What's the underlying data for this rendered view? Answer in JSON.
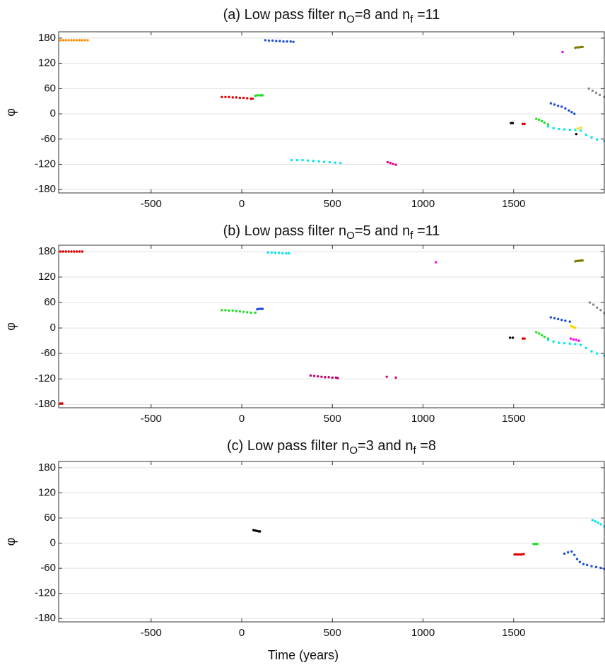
{
  "chart_data": [
    {
      "type": "scatter",
      "title": [
        "(a) Low pass filter n",
        "O",
        "=8 and n",
        "f",
        " =11"
      ],
      "ylabel": "φ",
      "xlim": [
        -1010,
        2000
      ],
      "ylim": [
        -188,
        195
      ],
      "xticks": [
        -500,
        0,
        500,
        1000,
        1500
      ],
      "yticks": [
        180,
        120,
        60,
        0,
        -60,
        -120,
        -180
      ],
      "grid": true,
      "series": [
        {
          "color": "#ff8c00",
          "x": [
            -1000,
            -985,
            -970,
            -955,
            -940,
            -925,
            -910,
            -895,
            -880,
            -865,
            -850
          ],
          "values": [
            175,
            175,
            175,
            175,
            175,
            175,
            175,
            175,
            175,
            175,
            175
          ]
        },
        {
          "color": "#1f4fd8",
          "x": [
            130,
            150,
            170,
            190,
            210,
            230,
            250,
            270,
            285
          ],
          "values": [
            175,
            174,
            174,
            173,
            173,
            172,
            172,
            172,
            171
          ]
        },
        {
          "color": "#e00000",
          "x": [
            -110,
            -90,
            -70,
            -50,
            -30,
            -10,
            10,
            30,
            50,
            60
          ],
          "values": [
            40,
            40,
            40,
            39,
            39,
            38,
            38,
            37,
            36,
            36
          ]
        },
        {
          "color": "#22dd22",
          "x": [
            75,
            85,
            95,
            105,
            115
          ],
          "values": [
            43,
            44,
            44,
            44,
            44
          ]
        },
        {
          "color": "#00e5ee",
          "x": [
            275,
            305,
            335,
            365,
            395,
            425,
            455,
            485,
            515,
            545
          ],
          "values": [
            -110,
            -110,
            -110,
            -111,
            -112,
            -113,
            -114,
            -115,
            -116,
            -117
          ]
        },
        {
          "color": "#e0007f",
          "x": [
            805,
            820,
            835,
            850
          ],
          "values": [
            -115,
            -117,
            -119,
            -121
          ]
        },
        {
          "color": "#000000",
          "x": [
            1485,
            1495
          ],
          "values": [
            -22,
            -22
          ]
        },
        {
          "color": "#e00000",
          "x": [
            1550,
            1560
          ],
          "values": [
            -24,
            -24
          ]
        },
        {
          "color": "#ff00ff",
          "x": [
            1770
          ],
          "values": [
            147
          ]
        },
        {
          "color": "#7a7a00",
          "x": [
            1840,
            1850,
            1860,
            1870,
            1880
          ],
          "values": [
            157,
            158,
            158,
            159,
            159
          ]
        },
        {
          "color": "#888888",
          "x": [
            1915,
            1935,
            1955,
            1975,
            2000
          ],
          "values": [
            60,
            55,
            50,
            45,
            40
          ]
        },
        {
          "color": "#1f4fd8",
          "x": [
            1705,
            1725,
            1745,
            1765,
            1785,
            1805,
            1820,
            1835
          ],
          "values": [
            25,
            22,
            19,
            17,
            13,
            8,
            4,
            0
          ]
        },
        {
          "color": "#22dd22",
          "x": [
            1625,
            1640,
            1655,
            1670,
            1690
          ],
          "values": [
            -12,
            -14,
            -17,
            -21,
            -25
          ]
        },
        {
          "color": "#00e5ee",
          "x": [
            1690,
            1720,
            1750,
            1780,
            1810,
            1840,
            1870,
            1900,
            1930,
            1960,
            2000
          ],
          "values": [
            -30,
            -34,
            -36,
            -37,
            -38,
            -38,
            -40,
            -50,
            -56,
            -61,
            -65
          ]
        },
        {
          "color": "#ffd700",
          "x": [
            1855,
            1870
          ],
          "values": [
            -35,
            -33
          ]
        },
        {
          "color": "#000000",
          "x": [
            1845
          ],
          "values": [
            -48
          ]
        }
      ]
    },
    {
      "type": "scatter",
      "title": [
        "(b) Low pass filter n",
        "O",
        "=5 and n",
        "f",
        " =11"
      ],
      "ylabel": "φ",
      "xlim": [
        -1010,
        2000
      ],
      "ylim": [
        -188,
        195
      ],
      "xticks": [
        -500,
        0,
        500,
        1000,
        1500
      ],
      "yticks": [
        180,
        120,
        60,
        0,
        -60,
        -120,
        -180
      ],
      "grid": true,
      "series": [
        {
          "color": "#e00000",
          "x": [
            -1000,
            -985,
            -970,
            -955,
            -940,
            -925,
            -910,
            -895,
            -880
          ],
          "values": [
            180,
            180,
            180,
            180,
            180,
            180,
            180,
            180,
            180
          ]
        },
        {
          "color": "#e00000",
          "x": [
            -1000,
            -990
          ],
          "values": [
            -178,
            -178
          ]
        },
        {
          "color": "#00e5ee",
          "x": [
            145,
            165,
            185,
            205,
            225,
            245,
            260
          ],
          "values": [
            178,
            178,
            177,
            177,
            176,
            176,
            176
          ]
        },
        {
          "color": "#ff00ff",
          "x": [
            1070
          ],
          "values": [
            155
          ]
        },
        {
          "color": "#22dd22",
          "x": [
            -110,
            -90,
            -70,
            -50,
            -30,
            -10,
            10,
            30,
            50,
            75
          ],
          "values": [
            42,
            42,
            41,
            41,
            40,
            39,
            38,
            37,
            36,
            36
          ]
        },
        {
          "color": "#1f4fd8",
          "x": [
            85,
            95,
            105,
            115
          ],
          "values": [
            44,
            45,
            45,
            45
          ]
        },
        {
          "color": "#c0006a",
          "x": [
            380,
            400,
            420,
            440,
            460,
            480,
            500,
            520,
            530
          ],
          "values": [
            -112,
            -113,
            -114,
            -115,
            -116,
            -116,
            -117,
            -117,
            -118
          ]
        },
        {
          "color": "#e0007f",
          "x": [
            800,
            850
          ],
          "values": [
            -115,
            -117
          ]
        },
        {
          "color": "#000000",
          "x": [
            1480,
            1495
          ],
          "values": [
            -23,
            -23
          ]
        },
        {
          "color": "#e00000",
          "x": [
            1550,
            1560
          ],
          "values": [
            -25,
            -25
          ]
        },
        {
          "color": "#7a7a00",
          "x": [
            1840,
            1850,
            1860,
            1870,
            1880
          ],
          "values": [
            157,
            158,
            158,
            159,
            159
          ]
        },
        {
          "color": "#888888",
          "x": [
            1920,
            1940,
            1960,
            1980,
            2000
          ],
          "values": [
            60,
            55,
            48,
            42,
            35
          ]
        },
        {
          "color": "#1f4fd8",
          "x": [
            1705,
            1725,
            1745,
            1765,
            1785,
            1810
          ],
          "values": [
            25,
            23,
            21,
            19,
            17,
            15
          ]
        },
        {
          "color": "#ffd700",
          "x": [
            1815,
            1825,
            1835,
            1840
          ],
          "values": [
            5,
            3,
            1,
            0
          ]
        },
        {
          "color": "#22dd22",
          "x": [
            1625,
            1640,
            1655,
            1670,
            1690
          ],
          "values": [
            -10,
            -13,
            -17,
            -21,
            -25
          ]
        },
        {
          "color": "#ff00ff",
          "x": [
            1815,
            1830,
            1845,
            1860
          ],
          "values": [
            -25,
            -27,
            -28,
            -30
          ]
        },
        {
          "color": "#00e5ee",
          "x": [
            1690,
            1720,
            1750,
            1780,
            1810,
            1840,
            1870,
            1900,
            1930,
            1960,
            2000
          ],
          "values": [
            -28,
            -32,
            -35,
            -36,
            -37,
            -38,
            -40,
            -47,
            -55,
            -60,
            -65
          ]
        }
      ]
    },
    {
      "type": "scatter",
      "title": [
        "(c) Low pass filter n",
        "O",
        "=3 and n",
        "f",
        " =8"
      ],
      "ylabel": "φ",
      "xlabel": "Time (years)",
      "xlim": [
        -1010,
        2000
      ],
      "ylim": [
        -188,
        195
      ],
      "xticks": [
        -500,
        0,
        500,
        1000,
        1500
      ],
      "yticks": [
        180,
        120,
        60,
        0,
        -60,
        -120,
        -180
      ],
      "grid": true,
      "series": [
        {
          "color": "#000000",
          "x": [
            65,
            75,
            85,
            95,
            100
          ],
          "values": [
            31,
            30,
            29,
            28,
            28
          ]
        },
        {
          "color": "#e00000",
          "x": [
            1505,
            1515,
            1525,
            1535,
            1545,
            1555
          ],
          "values": [
            -27,
            -27,
            -27,
            -27,
            -27,
            -26
          ]
        },
        {
          "color": "#22dd22",
          "x": [
            1610,
            1620,
            1630
          ],
          "values": [
            -2,
            -2,
            -2
          ]
        },
        {
          "color": "#1f4fd8",
          "x": [
            1780,
            1800,
            1820,
            1835,
            1850,
            1865,
            1885,
            1905,
            1930,
            1955,
            1980,
            2000
          ],
          "values": [
            -25,
            -22,
            -20,
            -28,
            -38,
            -45,
            -50,
            -52,
            -55,
            -57,
            -59,
            -62
          ]
        },
        {
          "color": "#00e5ee",
          "x": [
            1935,
            1950,
            1965,
            1980,
            2000
          ],
          "values": [
            55,
            52,
            49,
            45,
            40
          ]
        }
      ]
    }
  ]
}
